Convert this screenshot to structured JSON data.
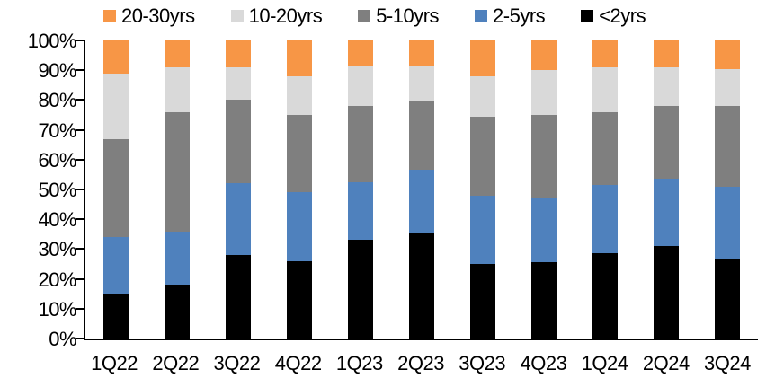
{
  "chart_data": {
    "type": "bar",
    "subtype": "stacked-100-percent",
    "title": "",
    "xlabel": "",
    "ylabel": "",
    "ylim": [
      0,
      100
    ],
    "grid": false,
    "legend_position": "top",
    "legend_order": [
      "20-30yrs",
      "10-20yrs",
      "5-10yrs",
      "2-5yrs",
      "<2yrs"
    ],
    "y_ticks": [
      "100%",
      "90%",
      "80%",
      "70%",
      "60%",
      "50%",
      "40%",
      "30%",
      "20%",
      "10%",
      "0%"
    ],
    "categories": [
      "1Q22",
      "2Q22",
      "3Q22",
      "4Q22",
      "1Q23",
      "2Q23",
      "3Q23",
      "4Q23",
      "1Q24",
      "2Q24",
      "3Q24"
    ],
    "series": [
      {
        "name": "<2yrs",
        "color": "#000000",
        "values": [
          15,
          18,
          28,
          26,
          33,
          35.5,
          25,
          25.5,
          28.5,
          31,
          26.5
        ]
      },
      {
        "name": "2-5yrs",
        "color": "#4F81BD",
        "values": [
          19,
          18,
          24,
          23,
          19.5,
          21,
          23,
          21.5,
          23,
          22.5,
          24.5
        ]
      },
      {
        "name": "5-10yrs",
        "color": "#7F7F7F",
        "values": [
          33,
          40,
          28,
          26,
          25.5,
          23,
          26.5,
          28,
          24.5,
          24.5,
          27
        ]
      },
      {
        "name": "10-20yrs",
        "color": "#D9D9D9",
        "values": [
          22,
          15,
          11,
          13,
          13.5,
          12,
          13.5,
          15,
          15,
          13,
          12.5
        ]
      },
      {
        "name": "20-30yrs",
        "color": "#F79646",
        "values": [
          11,
          9,
          9,
          12,
          8.5,
          8.5,
          12,
          10,
          9,
          9,
          9.5
        ]
      }
    ],
    "colors": {
      "axis": "#000000",
      "text": "#000000",
      "background": "#FFFFFF"
    }
  }
}
